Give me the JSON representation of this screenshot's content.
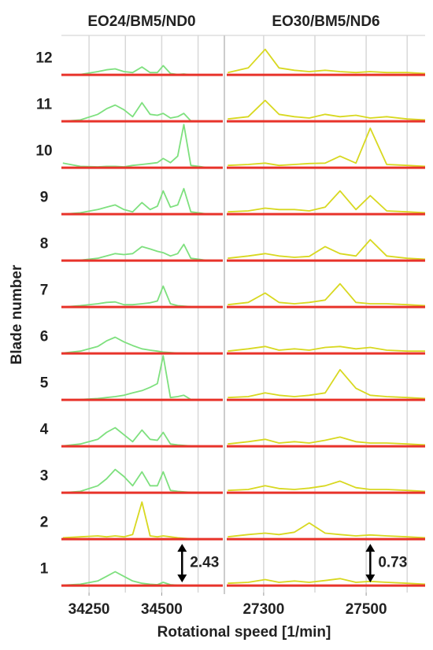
{
  "chart_data": [
    {
      "type": "line",
      "title": "EO24/BM5/ND0",
      "ylabel": "Blade number",
      "x": [
        34160,
        34220,
        34280,
        34310,
        34340,
        34370,
        34400,
        34432,
        34460,
        34485,
        34505,
        34530,
        34555,
        34576,
        34600,
        34650,
        34700
      ],
      "xlim": [
        34155,
        34710
      ],
      "xticks": [
        34250,
        34500
      ],
      "grid_x": [
        34250,
        34375,
        34500,
        34625
      ],
      "ylim": [
        0.5,
        12.5
      ],
      "yticks": [
        1,
        2,
        3,
        4,
        5,
        6,
        7,
        8,
        9,
        10,
        11,
        12
      ],
      "baselines": [
        0.65,
        1.65,
        2.65,
        3.65,
        4.65,
        5.65,
        6.65,
        7.65,
        8.65,
        9.65,
        10.65,
        11.65
      ],
      "baseline_color": "#e8332a",
      "series": [
        {
          "color": "#7ee07e",
          "values": [
            0.66,
            0.68,
            0.75,
            0.85,
            0.95,
            0.85,
            0.75,
            0.7,
            0.68,
            0.67,
            0.72,
            0.67,
            0.66,
            0.66,
            0.65,
            0.65,
            0.65
          ]
        },
        {
          "color": "#d8d820",
          "values": [
            1.68,
            1.7,
            1.72,
            1.7,
            1.72,
            1.7,
            1.75,
            2.45,
            1.72,
            1.7,
            1.72,
            1.7,
            1.68,
            1.67,
            1.66,
            1.65,
            1.65
          ]
        },
        {
          "color": "#7ee07e",
          "values": [
            2.65,
            2.68,
            2.8,
            2.95,
            3.15,
            3.0,
            2.8,
            3.1,
            2.8,
            2.8,
            3.1,
            2.7,
            2.68,
            2.67,
            2.66,
            2.65,
            2.65
          ]
        },
        {
          "color": "#7ee07e",
          "values": [
            3.66,
            3.7,
            3.8,
            3.95,
            4.05,
            3.9,
            3.75,
            4.0,
            3.8,
            3.78,
            3.95,
            3.7,
            3.68,
            3.67,
            3.66,
            3.65,
            3.65
          ]
        },
        {
          "color": "#7ee07e",
          "values": [
            4.65,
            4.66,
            4.68,
            4.7,
            4.72,
            4.75,
            4.8,
            4.85,
            4.92,
            5.0,
            5.6,
            4.7,
            4.72,
            4.75,
            4.66,
            4.65,
            4.65
          ]
        },
        {
          "color": "#7ee07e",
          "values": [
            5.66,
            5.7,
            5.8,
            5.92,
            6.0,
            5.9,
            5.82,
            5.75,
            5.72,
            5.7,
            5.68,
            5.67,
            5.66,
            5.66,
            5.65,
            5.65,
            5.65
          ]
        },
        {
          "color": "#7ee07e",
          "values": [
            6.65,
            6.68,
            6.72,
            6.75,
            6.76,
            6.7,
            6.7,
            6.72,
            6.74,
            6.78,
            7.1,
            6.72,
            6.68,
            6.67,
            6.66,
            6.65,
            6.65
          ]
        },
        {
          "color": "#7ee07e",
          "values": [
            7.65,
            7.66,
            7.7,
            7.75,
            7.8,
            7.78,
            7.8,
            7.95,
            7.9,
            7.85,
            7.82,
            7.75,
            7.8,
            8.0,
            7.7,
            7.66,
            7.65
          ]
        },
        {
          "color": "#7ee07e",
          "values": [
            8.65,
            8.68,
            8.75,
            8.8,
            8.85,
            8.75,
            8.7,
            8.9,
            8.75,
            8.82,
            9.15,
            8.8,
            8.85,
            9.2,
            8.7,
            8.66,
            8.65
          ]
        },
        {
          "color": "#7ee07e",
          "values": [
            9.75,
            9.68,
            9.67,
            9.68,
            9.68,
            9.67,
            9.7,
            9.72,
            9.74,
            9.76,
            9.85,
            9.76,
            9.9,
            10.58,
            9.7,
            9.66,
            9.65
          ]
        },
        {
          "color": "#7ee07e",
          "values": [
            10.65,
            10.68,
            10.8,
            10.92,
            11.0,
            10.9,
            10.75,
            11.05,
            10.8,
            10.78,
            10.82,
            10.72,
            10.75,
            10.82,
            10.66,
            10.65,
            10.65
          ]
        },
        {
          "color": "#7ee07e",
          "values": [
            11.65,
            11.66,
            11.72,
            11.76,
            11.78,
            11.72,
            11.7,
            11.82,
            11.7,
            11.7,
            11.85,
            11.68,
            11.66,
            11.67,
            11.65,
            11.65,
            11.65
          ]
        }
      ],
      "annotations": [
        {
          "text": "2.43",
          "x": 34570
        }
      ]
    },
    {
      "type": "line",
      "title": "EO30/BM5/ND6",
      "xlabel": "Rotational speed [1/min]",
      "x": [
        27230,
        27270,
        27303,
        27330,
        27360,
        27389,
        27420,
        27449,
        27480,
        27508,
        27540,
        27580,
        27615
      ],
      "xlim": [
        27228,
        27615
      ],
      "xticks": [
        27300,
        27500
      ],
      "grid_x": [
        27300,
        27400,
        27500,
        27580
      ],
      "ylim": [
        0.5,
        12.5
      ],
      "baselines": [
        0.65,
        1.65,
        2.65,
        3.65,
        4.65,
        5.65,
        6.65,
        7.65,
        8.65,
        9.65,
        10.65,
        11.65
      ],
      "baseline_color": "#e8332a",
      "series": [
        {
          "color": "#d8d820",
          "values": [
            0.7,
            0.72,
            0.78,
            0.72,
            0.75,
            0.72,
            0.76,
            0.8,
            0.72,
            0.74,
            0.72,
            0.7,
            0.68
          ]
        },
        {
          "color": "#d8d820",
          "values": [
            1.7,
            1.75,
            1.78,
            1.75,
            1.8,
            2.0,
            1.78,
            1.75,
            1.72,
            1.74,
            1.72,
            1.7,
            1.68
          ]
        },
        {
          "color": "#d8d820",
          "values": [
            2.7,
            2.72,
            2.8,
            2.74,
            2.72,
            2.75,
            2.8,
            2.9,
            2.76,
            2.72,
            2.72,
            2.7,
            2.68
          ]
        },
        {
          "color": "#d8d820",
          "values": [
            3.7,
            3.75,
            3.8,
            3.72,
            3.75,
            3.72,
            3.78,
            3.85,
            3.75,
            3.72,
            3.72,
            3.7,
            3.68
          ]
        },
        {
          "color": "#d8d820",
          "values": [
            4.7,
            4.72,
            4.8,
            4.75,
            4.72,
            4.75,
            4.8,
            5.3,
            4.9,
            4.75,
            4.72,
            4.7,
            4.68
          ]
        },
        {
          "color": "#d8d820",
          "values": [
            5.7,
            5.75,
            5.8,
            5.72,
            5.75,
            5.72,
            5.78,
            5.8,
            5.75,
            5.78,
            5.72,
            5.7,
            5.7
          ]
        },
        {
          "color": "#d8d820",
          "values": [
            6.7,
            6.75,
            6.95,
            6.75,
            6.72,
            6.75,
            6.8,
            7.15,
            6.75,
            6.72,
            6.72,
            6.7,
            6.68
          ]
        },
        {
          "color": "#d8d820",
          "values": [
            7.7,
            7.75,
            7.8,
            7.75,
            7.72,
            7.74,
            7.95,
            7.8,
            7.75,
            8.1,
            7.75,
            7.7,
            7.68
          ]
        },
        {
          "color": "#d8d820",
          "values": [
            8.7,
            8.72,
            8.78,
            8.75,
            8.75,
            8.72,
            8.8,
            9.15,
            8.75,
            9.05,
            8.72,
            8.7,
            8.68
          ]
        },
        {
          "color": "#d8d820",
          "values": [
            9.7,
            9.72,
            9.75,
            9.7,
            9.72,
            9.74,
            9.75,
            9.9,
            9.75,
            10.5,
            9.72,
            9.7,
            9.68
          ]
        },
        {
          "color": "#d8d820",
          "values": [
            10.7,
            10.75,
            11.1,
            10.8,
            10.75,
            10.72,
            10.8,
            10.75,
            10.78,
            10.72,
            10.75,
            10.7,
            10.68
          ]
        },
        {
          "color": "#d8d820",
          "values": [
            11.7,
            11.8,
            12.2,
            11.8,
            11.75,
            11.72,
            11.75,
            11.72,
            11.7,
            11.72,
            11.7,
            11.7,
            11.68
          ]
        }
      ],
      "annotations": [
        {
          "text": "0.73",
          "x": 27508
        }
      ]
    }
  ]
}
